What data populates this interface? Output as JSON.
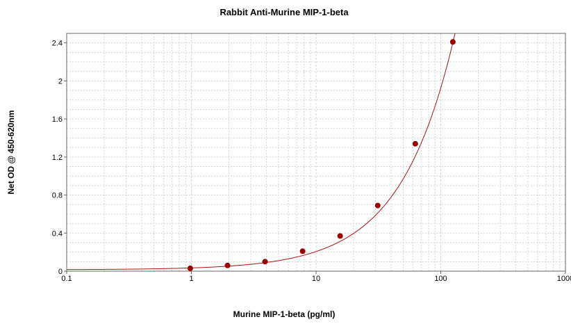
{
  "chart_data": {
    "type": "scatter",
    "title": "Rabbit Anti-Murine MIP-1-beta",
    "xlabel": "Murine MIP-1-beta (pg/ml)",
    "ylabel": "Net OD @ 450-620nm",
    "xscale": "log",
    "xlim": [
      0.1,
      1000
    ],
    "ylim": [
      0,
      2.5
    ],
    "x_ticks": [
      0.1,
      1,
      10,
      100,
      1000
    ],
    "x_tick_labels": [
      "0.1",
      "1",
      "10",
      "100",
      "1000"
    ],
    "y_ticks": [
      0,
      0.4,
      0.8,
      1.2,
      1.6,
      2,
      2.4
    ],
    "y_tick_labels": [
      "0",
      "0.4",
      "0.8",
      "1.2",
      "1.6",
      "2",
      "2.4"
    ],
    "grid": true,
    "legend": "none",
    "colors": {
      "points": "#990000",
      "curve": "#aa1111",
      "grid": "#d6d6d6",
      "axis": "#666666"
    },
    "series": [
      {
        "values": [
          {
            "x": 0.98,
            "y": 0.03
          },
          {
            "x": 1.95,
            "y": 0.06
          },
          {
            "x": 3.9,
            "y": 0.1
          },
          {
            "x": 7.8,
            "y": 0.21
          },
          {
            "x": 15.6,
            "y": 0.37
          },
          {
            "x": 31.25,
            "y": 0.69
          },
          {
            "x": 62.5,
            "y": 1.34
          },
          {
            "x": 125,
            "y": 2.41
          }
        ]
      }
    ],
    "fit_curve": {
      "type": "linear",
      "y_intercept": 0.015,
      "slope": 0.0191
    }
  }
}
